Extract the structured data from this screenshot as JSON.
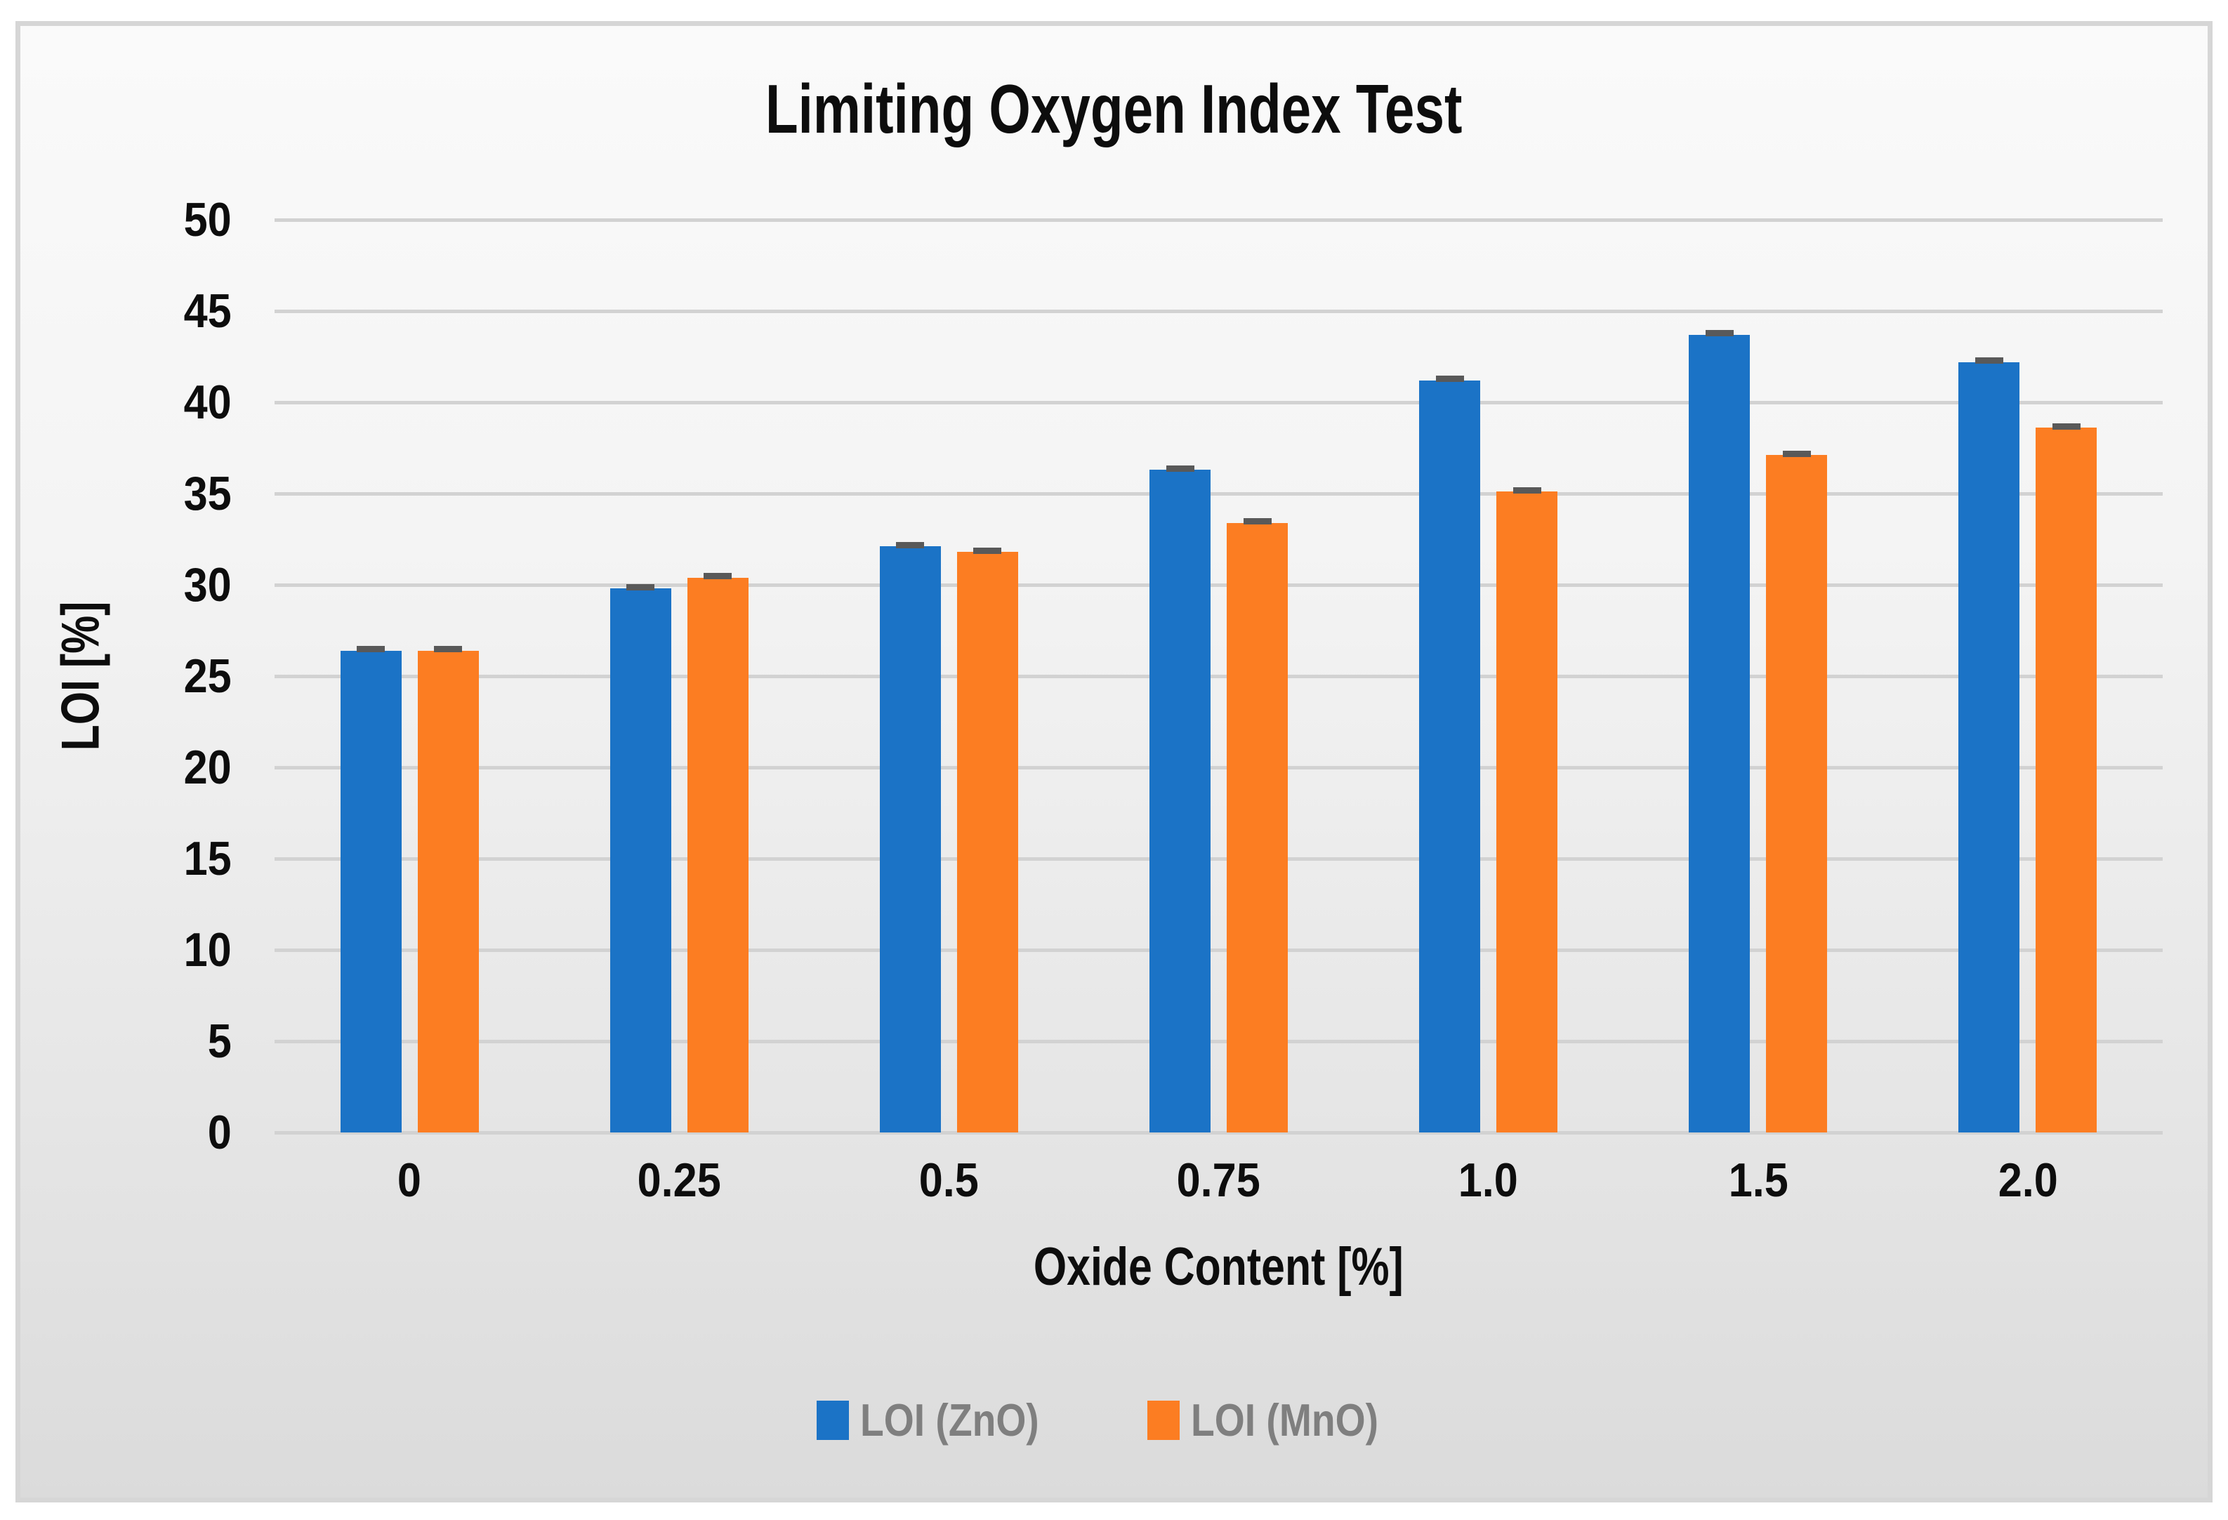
{
  "chart_data": {
    "type": "bar",
    "title": "Limiting Oxygen Index Test",
    "xlabel": "Oxide Content [%]",
    "ylabel": "LOI [%]",
    "categories": [
      "0",
      "0.25",
      "0.5",
      "0.75",
      "1.0",
      "1.5",
      "2.0"
    ],
    "series": [
      {
        "name": "LOI (ZnO)",
        "color": "#1B73C6",
        "values": [
          26.4,
          29.8,
          32.1,
          36.3,
          41.2,
          43.7,
          42.2
        ],
        "error": 0.15
      },
      {
        "name": "LOI (MnO)",
        "color": "#FC7D22",
        "values": [
          26.4,
          30.4,
          31.8,
          33.4,
          35.1,
          37.1,
          38.6
        ],
        "error": 0.15
      }
    ],
    "error_bars": true,
    "error_color": "#595959",
    "ylim": [
      0,
      50
    ],
    "ytick_step": 5,
    "ytick_labels": [
      "0",
      "5",
      "10",
      "15",
      "20",
      "25",
      "30",
      "35",
      "40",
      "45",
      "50"
    ],
    "grid": true,
    "gridline_color": "#d2d2d2",
    "legend_position": "bottom",
    "legend_text_color": "#7f7f7f",
    "text_color": "#0d0d0d",
    "background": {
      "top": "#fafafa",
      "bottom": "#dbdbdb",
      "border": "#d6d6d6"
    }
  }
}
